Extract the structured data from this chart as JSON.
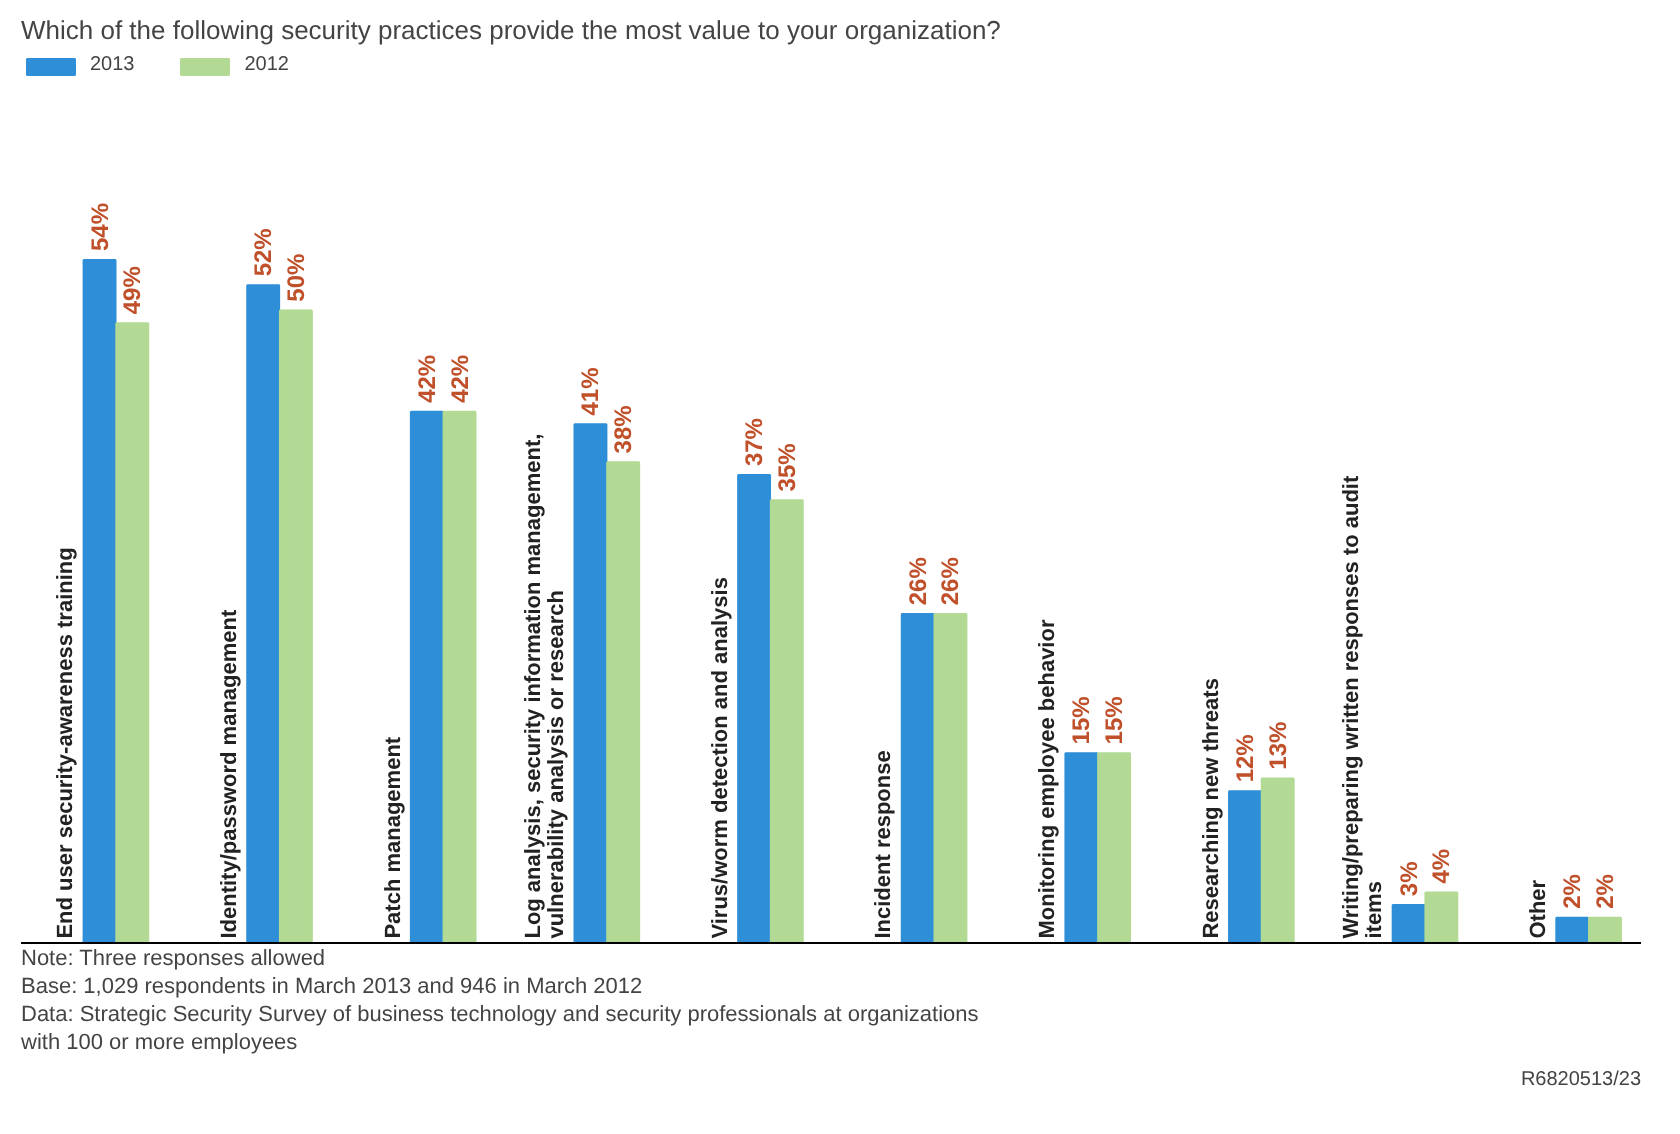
{
  "chart_data": {
    "type": "bar",
    "title": "Which of the following security practices provide the most value to your organization?",
    "categories": [
      "End user security-awareness training",
      "Identity/password management",
      "Patch management",
      "Log analysis, security information management, vulnerability analysis or research",
      "Virus/worm detection and analysis",
      "Incident response",
      "Monitoring employee behavior",
      "Researching new threats",
      "Writing/preparing written responses to audit items",
      "Other"
    ],
    "series": [
      {
        "name": "2013",
        "color": "#2e8fd8",
        "values": [
          54,
          52,
          42,
          41,
          37,
          26,
          15,
          12,
          3,
          2
        ],
        "value_labels": [
          "54%",
          "52%",
          "42%",
          "41%",
          "37%",
          "26%",
          "15%",
          "12%",
          "3%",
          "2%"
        ]
      },
      {
        "name": "2012",
        "color": "#b3da94",
        "values": [
          49,
          50,
          42,
          38,
          35,
          26,
          15,
          13,
          4,
          2
        ],
        "value_labels": [
          "49%",
          "50%",
          "42%",
          "38%",
          "35%",
          "26%",
          "15%",
          "13%",
          "4%",
          "2%"
        ]
      }
    ],
    "legend": "top left",
    "annotations": [
      "R6820513/23",
      "Note: Three responses allowed",
      "Base: 1,029 respondents in March 2013 and 946 in March 2012",
      "Data: Strategic Security Survey of business technology and security professionals at organizations with 100 or more employees"
    ]
  }
}
